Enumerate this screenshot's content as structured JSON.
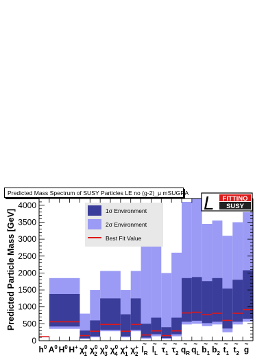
{
  "chart_data": {
    "type": "bar",
    "title": "Predicted Mass Spectrum of SUSY Particles LE no (g-2)_μ mSUGRA",
    "ylabel": "Predicted Particle Mass [GeV]",
    "xlabel": "",
    "ylim": [
      0,
      4200
    ],
    "yticks": [
      0,
      500,
      1000,
      1500,
      2000,
      2500,
      3000,
      3500,
      4000
    ],
    "categories": [
      {
        "base": "h",
        "sup": "0",
        "sub": "",
        "tilde": false
      },
      {
        "base": "A",
        "sup": "0",
        "sub": "",
        "tilde": false
      },
      {
        "base": "H",
        "sup": "0",
        "sub": "",
        "tilde": false
      },
      {
        "base": "H",
        "sup": "+",
        "sub": "",
        "tilde": false
      },
      {
        "base": "χ",
        "sup": "0",
        "sub": "1",
        "tilde": false
      },
      {
        "base": "χ",
        "sup": "0",
        "sub": "2",
        "tilde": false
      },
      {
        "base": "χ",
        "sup": "0",
        "sub": "3",
        "tilde": false
      },
      {
        "base": "χ",
        "sup": "0",
        "sub": "4",
        "tilde": false
      },
      {
        "base": "χ",
        "sup": "+",
        "sub": "1",
        "tilde": false
      },
      {
        "base": "χ",
        "sup": "+",
        "sub": "2",
        "tilde": false
      },
      {
        "base": "l",
        "sup": "",
        "sub": "R",
        "tilde": true
      },
      {
        "base": "l",
        "sup": "",
        "sub": "L",
        "tilde": true
      },
      {
        "base": "τ",
        "sup": "",
        "sub": "1",
        "tilde": true
      },
      {
        "base": "τ",
        "sup": "",
        "sub": "2",
        "tilde": true
      },
      {
        "base": "q",
        "sup": "",
        "sub": "R",
        "tilde": true
      },
      {
        "base": "q",
        "sup": "",
        "sub": "L",
        "tilde": true
      },
      {
        "base": "b",
        "sup": "",
        "sub": "1",
        "tilde": true
      },
      {
        "base": "b",
        "sup": "",
        "sub": "2",
        "tilde": true
      },
      {
        "base": "t",
        "sup": "",
        "sub": "1",
        "tilde": true
      },
      {
        "base": "t",
        "sup": "",
        "sub": "2",
        "tilde": true
      },
      {
        "base": "g",
        "sup": "",
        "sub": "",
        "tilde": true
      }
    ],
    "groups": [
      {
        "cols": [
          0
        ],
        "s2": [
          100,
          130
        ],
        "s1": [
          110,
          125
        ],
        "best": 118
      },
      {
        "cols": [
          1,
          2,
          3
        ],
        "s2": [
          350,
          1850
        ],
        "s1": [
          420,
          1380
        ],
        "best": 560
      },
      {
        "cols": [
          4
        ],
        "s2": [
          50,
          800
        ],
        "s1": [
          70,
          300
        ],
        "best": 150
      },
      {
        "cols": [
          5
        ],
        "s2": [
          100,
          1500
        ],
        "s1": [
          130,
          600
        ],
        "best": 280
      },
      {
        "cols": [
          6,
          7
        ],
        "s2": [
          280,
          2060
        ],
        "s1": [
          320,
          1250
        ],
        "best": 480
      },
      {
        "cols": [
          8
        ],
        "s2": [
          100,
          1500
        ],
        "s1": [
          130,
          780
        ],
        "best": 280
      },
      {
        "cols": [
          9
        ],
        "s2": [
          280,
          2060
        ],
        "s1": [
          320,
          1250
        ],
        "best": 480
      },
      {
        "cols": [
          10
        ],
        "s2": [
          60,
          2800
        ],
        "s1": [
          90,
          500
        ],
        "best": 170
      },
      {
        "cols": [
          11
        ],
        "s2": [
          130,
          2800
        ],
        "s1": [
          190,
          680
        ],
        "best": 290
      },
      {
        "cols": [
          12
        ],
        "s2": [
          50,
          2000
        ],
        "s1": [
          80,
          400
        ],
        "best": 150
      },
      {
        "cols": [
          13
        ],
        "s2": [
          130,
          2600
        ],
        "s1": [
          190,
          680
        ],
        "best": 290
      },
      {
        "cols": [
          14
        ],
        "s2": [
          480,
          4100
        ],
        "s1": [
          560,
          1850
        ],
        "best": 820
      },
      {
        "cols": [
          15
        ],
        "s2": [
          500,
          4200
        ],
        "s1": [
          590,
          1880
        ],
        "best": 840
      },
      {
        "cols": [
          16
        ],
        "s2": [
          430,
          3450
        ],
        "s1": [
          520,
          1760
        ],
        "best": 770
      },
      {
        "cols": [
          17
        ],
        "s2": [
          480,
          3550
        ],
        "s1": [
          560,
          1850
        ],
        "best": 810
      },
      {
        "cols": [
          18
        ],
        "s2": [
          250,
          3100
        ],
        "s1": [
          360,
          1540
        ],
        "best": 600
      },
      {
        "cols": [
          19
        ],
        "s2": [
          480,
          3500
        ],
        "s1": [
          560,
          1800
        ],
        "best": 810
      },
      {
        "cols": [
          20
        ],
        "s2": [
          560,
          3800
        ],
        "s1": [
          650,
          2080
        ],
        "best": 920
      }
    ],
    "legend": {
      "placement": "top-center",
      "items": [
        {
          "label": "1σ Environment",
          "color": "#3a3d99",
          "kind": "box"
        },
        {
          "label": "2σ Environment",
          "color": "#9b9bf5",
          "kind": "box"
        },
        {
          "label": "Best Fit Value",
          "color": "#e01818",
          "kind": "line"
        }
      ]
    },
    "colors": {
      "s1": "#3a3d99",
      "s2": "#9b9bf5",
      "best": "#e01818"
    },
    "grid": false
  },
  "logo": {
    "brand": "FITTINO",
    "sub": "SUSY",
    "letter": "L"
  }
}
